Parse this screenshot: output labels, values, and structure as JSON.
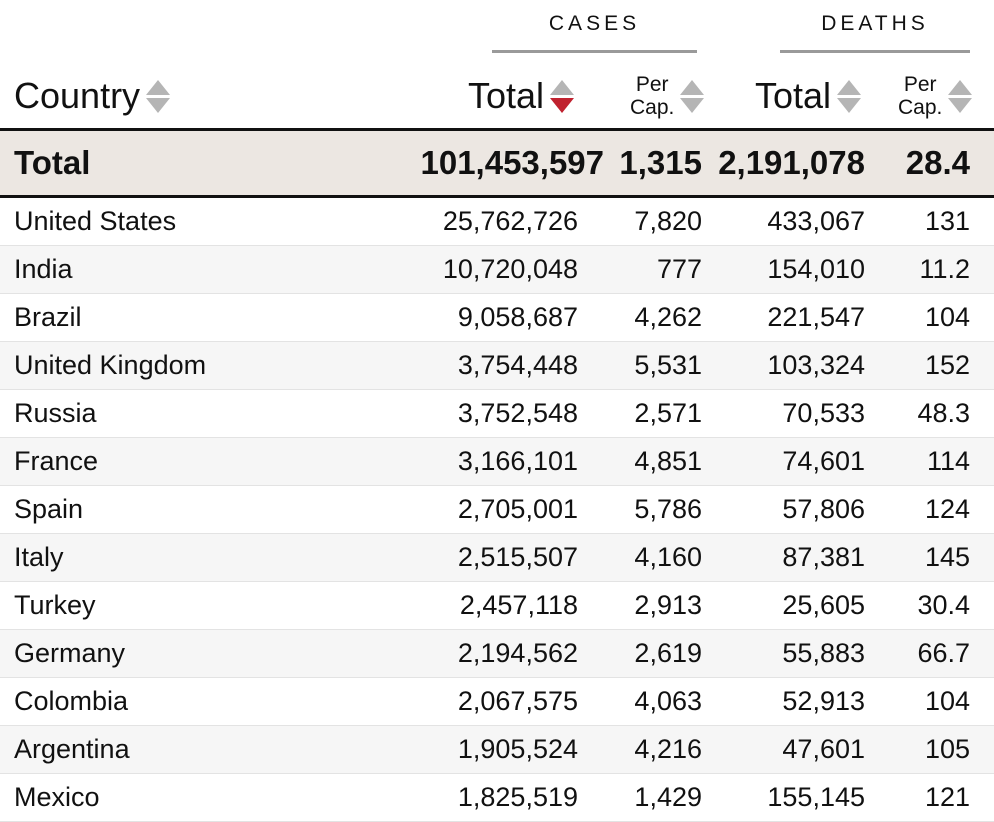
{
  "groups": {
    "cases": "CASES",
    "deaths": "DEATHS"
  },
  "headers": {
    "country": "Country",
    "cases_total": "Total",
    "cases_per_cap_line1": "Per",
    "cases_per_cap_line2": "Cap.",
    "deaths_total": "Total",
    "deaths_per_cap_line1": "Per",
    "deaths_per_cap_line2": "Cap."
  },
  "sort": {
    "column": "cases_total",
    "direction": "descending",
    "active_color": "#c0222f"
  },
  "total": {
    "label": "Total",
    "cases_total": "101,453,597",
    "cases_per_cap": "1,315",
    "deaths_total": "2,191,078",
    "deaths_per_cap": "28.4"
  },
  "rows": [
    {
      "country": "United States",
      "cases_total": "25,762,726",
      "cases_per_cap": "7,820",
      "deaths_total": "433,067",
      "deaths_per_cap": "131"
    },
    {
      "country": "India",
      "cases_total": "10,720,048",
      "cases_per_cap": "777",
      "deaths_total": "154,010",
      "deaths_per_cap": "11.2"
    },
    {
      "country": "Brazil",
      "cases_total": "9,058,687",
      "cases_per_cap": "4,262",
      "deaths_total": "221,547",
      "deaths_per_cap": "104"
    },
    {
      "country": "United Kingdom",
      "cases_total": "3,754,448",
      "cases_per_cap": "5,531",
      "deaths_total": "103,324",
      "deaths_per_cap": "152"
    },
    {
      "country": "Russia",
      "cases_total": "3,752,548",
      "cases_per_cap": "2,571",
      "deaths_total": "70,533",
      "deaths_per_cap": "48.3"
    },
    {
      "country": "France",
      "cases_total": "3,166,101",
      "cases_per_cap": "4,851",
      "deaths_total": "74,601",
      "deaths_per_cap": "114"
    },
    {
      "country": "Spain",
      "cases_total": "2,705,001",
      "cases_per_cap": "5,786",
      "deaths_total": "57,806",
      "deaths_per_cap": "124"
    },
    {
      "country": "Italy",
      "cases_total": "2,515,507",
      "cases_per_cap": "4,160",
      "deaths_total": "87,381",
      "deaths_per_cap": "145"
    },
    {
      "country": "Turkey",
      "cases_total": "2,457,118",
      "cases_per_cap": "2,913",
      "deaths_total": "25,605",
      "deaths_per_cap": "30.4"
    },
    {
      "country": "Germany",
      "cases_total": "2,194,562",
      "cases_per_cap": "2,619",
      "deaths_total": "55,883",
      "deaths_per_cap": "66.7"
    },
    {
      "country": "Colombia",
      "cases_total": "2,067,575",
      "cases_per_cap": "4,063",
      "deaths_total": "52,913",
      "deaths_per_cap": "104"
    },
    {
      "country": "Argentina",
      "cases_total": "1,905,524",
      "cases_per_cap": "4,216",
      "deaths_total": "47,601",
      "deaths_per_cap": "105"
    },
    {
      "country": "Mexico",
      "cases_total": "1,825,519",
      "cases_per_cap": "1,429",
      "deaths_total": "155,145",
      "deaths_per_cap": "121"
    }
  ]
}
